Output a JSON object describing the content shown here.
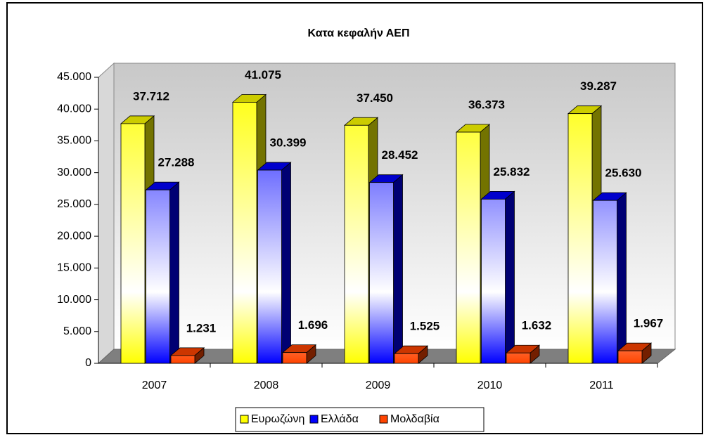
{
  "chart_data": {
    "type": "bar3d",
    "title": "Κατα κεφαλήν ΑΕΠ",
    "categories": [
      "2007",
      "2008",
      "2009",
      "2010",
      "2011"
    ],
    "series": [
      {
        "name": "Ευρωζώνη",
        "color": "#ffff00",
        "values": [
          37712,
          41075,
          37450,
          36373,
          39287
        ],
        "value_labels": [
          "37.712",
          "41.075",
          "37.450",
          "36.373",
          "39.287"
        ]
      },
      {
        "name": "Ελλάδα",
        "color": "#0000ff",
        "values": [
          27288,
          30399,
          28452,
          25832,
          25630
        ],
        "value_labels": [
          "27.288",
          "30.399",
          "28.452",
          "25.832",
          "25.630"
        ]
      },
      {
        "name": "Μολδαβία",
        "color": "#ff4400",
        "values": [
          1231,
          1696,
          1525,
          1632,
          1967
        ],
        "value_labels": [
          "1.231",
          "1.696",
          "1.525",
          "1.632",
          "1.967"
        ]
      }
    ],
    "ylim": [
      0,
      45000
    ],
    "yticks": [
      0,
      {
        "value": 5000,
        "label": "5.000"
      },
      {
        "value": 10000,
        "label": "10.000"
      },
      {
        "value": 15000,
        "label": "15.000"
      },
      {
        "value": 20000,
        "label": "20.000"
      },
      {
        "value": 25000,
        "label": "25.000"
      },
      {
        "value": 30000,
        "label": "30.000"
      },
      {
        "value": 35000,
        "label": "35.000"
      },
      {
        "value": 40000,
        "label": "40.000"
      },
      {
        "value": 45000,
        "label": "45.000"
      }
    ],
    "grid": false,
    "legend": "bottom"
  }
}
